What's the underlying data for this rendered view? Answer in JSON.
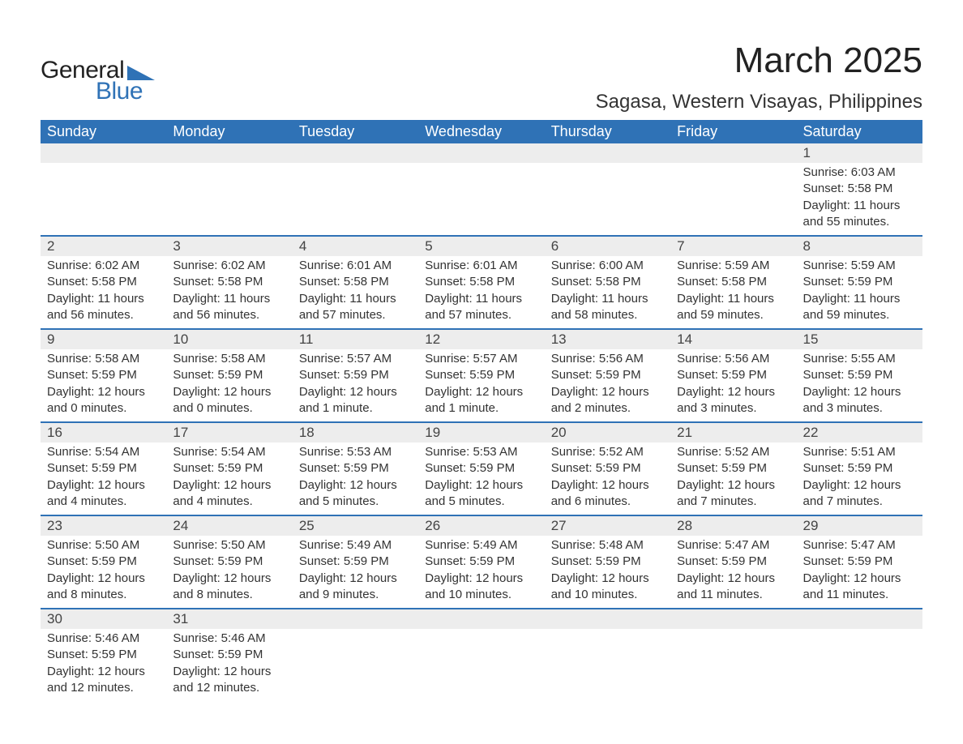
{
  "logo": {
    "general": "General",
    "blue": "Blue",
    "tri_color": "#2f72b6"
  },
  "header": {
    "month_title": "March 2025",
    "location": "Sagasa, Western Visayas, Philippines"
  },
  "calendar": {
    "header_bg": "#2f72b6",
    "header_fg": "#ffffff",
    "daynum_bg": "#ededed",
    "divider_color": "#2f72b6",
    "text_color": "#333333",
    "fontsize_header": 18,
    "fontsize_daynum": 17,
    "fontsize_detail": 15,
    "days_of_week": [
      "Sunday",
      "Monday",
      "Tuesday",
      "Wednesday",
      "Thursday",
      "Friday",
      "Saturday"
    ],
    "weeks": [
      [
        null,
        null,
        null,
        null,
        null,
        null,
        {
          "n": "1",
          "sunrise": "Sunrise: 6:03 AM",
          "sunset": "Sunset: 5:58 PM",
          "daylight": "Daylight: 11 hours and 55 minutes."
        }
      ],
      [
        {
          "n": "2",
          "sunrise": "Sunrise: 6:02 AM",
          "sunset": "Sunset: 5:58 PM",
          "daylight": "Daylight: 11 hours and 56 minutes."
        },
        {
          "n": "3",
          "sunrise": "Sunrise: 6:02 AM",
          "sunset": "Sunset: 5:58 PM",
          "daylight": "Daylight: 11 hours and 56 minutes."
        },
        {
          "n": "4",
          "sunrise": "Sunrise: 6:01 AM",
          "sunset": "Sunset: 5:58 PM",
          "daylight": "Daylight: 11 hours and 57 minutes."
        },
        {
          "n": "5",
          "sunrise": "Sunrise: 6:01 AM",
          "sunset": "Sunset: 5:58 PM",
          "daylight": "Daylight: 11 hours and 57 minutes."
        },
        {
          "n": "6",
          "sunrise": "Sunrise: 6:00 AM",
          "sunset": "Sunset: 5:58 PM",
          "daylight": "Daylight: 11 hours and 58 minutes."
        },
        {
          "n": "7",
          "sunrise": "Sunrise: 5:59 AM",
          "sunset": "Sunset: 5:58 PM",
          "daylight": "Daylight: 11 hours and 59 minutes."
        },
        {
          "n": "8",
          "sunrise": "Sunrise: 5:59 AM",
          "sunset": "Sunset: 5:59 PM",
          "daylight": "Daylight: 11 hours and 59 minutes."
        }
      ],
      [
        {
          "n": "9",
          "sunrise": "Sunrise: 5:58 AM",
          "sunset": "Sunset: 5:59 PM",
          "daylight": "Daylight: 12 hours and 0 minutes."
        },
        {
          "n": "10",
          "sunrise": "Sunrise: 5:58 AM",
          "sunset": "Sunset: 5:59 PM",
          "daylight": "Daylight: 12 hours and 0 minutes."
        },
        {
          "n": "11",
          "sunrise": "Sunrise: 5:57 AM",
          "sunset": "Sunset: 5:59 PM",
          "daylight": "Daylight: 12 hours and 1 minute."
        },
        {
          "n": "12",
          "sunrise": "Sunrise: 5:57 AM",
          "sunset": "Sunset: 5:59 PM",
          "daylight": "Daylight: 12 hours and 1 minute."
        },
        {
          "n": "13",
          "sunrise": "Sunrise: 5:56 AM",
          "sunset": "Sunset: 5:59 PM",
          "daylight": "Daylight: 12 hours and 2 minutes."
        },
        {
          "n": "14",
          "sunrise": "Sunrise: 5:56 AM",
          "sunset": "Sunset: 5:59 PM",
          "daylight": "Daylight: 12 hours and 3 minutes."
        },
        {
          "n": "15",
          "sunrise": "Sunrise: 5:55 AM",
          "sunset": "Sunset: 5:59 PM",
          "daylight": "Daylight: 12 hours and 3 minutes."
        }
      ],
      [
        {
          "n": "16",
          "sunrise": "Sunrise: 5:54 AM",
          "sunset": "Sunset: 5:59 PM",
          "daylight": "Daylight: 12 hours and 4 minutes."
        },
        {
          "n": "17",
          "sunrise": "Sunrise: 5:54 AM",
          "sunset": "Sunset: 5:59 PM",
          "daylight": "Daylight: 12 hours and 4 minutes."
        },
        {
          "n": "18",
          "sunrise": "Sunrise: 5:53 AM",
          "sunset": "Sunset: 5:59 PM",
          "daylight": "Daylight: 12 hours and 5 minutes."
        },
        {
          "n": "19",
          "sunrise": "Sunrise: 5:53 AM",
          "sunset": "Sunset: 5:59 PM",
          "daylight": "Daylight: 12 hours and 5 minutes."
        },
        {
          "n": "20",
          "sunrise": "Sunrise: 5:52 AM",
          "sunset": "Sunset: 5:59 PM",
          "daylight": "Daylight: 12 hours and 6 minutes."
        },
        {
          "n": "21",
          "sunrise": "Sunrise: 5:52 AM",
          "sunset": "Sunset: 5:59 PM",
          "daylight": "Daylight: 12 hours and 7 minutes."
        },
        {
          "n": "22",
          "sunrise": "Sunrise: 5:51 AM",
          "sunset": "Sunset: 5:59 PM",
          "daylight": "Daylight: 12 hours and 7 minutes."
        }
      ],
      [
        {
          "n": "23",
          "sunrise": "Sunrise: 5:50 AM",
          "sunset": "Sunset: 5:59 PM",
          "daylight": "Daylight: 12 hours and 8 minutes."
        },
        {
          "n": "24",
          "sunrise": "Sunrise: 5:50 AM",
          "sunset": "Sunset: 5:59 PM",
          "daylight": "Daylight: 12 hours and 8 minutes."
        },
        {
          "n": "25",
          "sunrise": "Sunrise: 5:49 AM",
          "sunset": "Sunset: 5:59 PM",
          "daylight": "Daylight: 12 hours and 9 minutes."
        },
        {
          "n": "26",
          "sunrise": "Sunrise: 5:49 AM",
          "sunset": "Sunset: 5:59 PM",
          "daylight": "Daylight: 12 hours and 10 minutes."
        },
        {
          "n": "27",
          "sunrise": "Sunrise: 5:48 AM",
          "sunset": "Sunset: 5:59 PM",
          "daylight": "Daylight: 12 hours and 10 minutes."
        },
        {
          "n": "28",
          "sunrise": "Sunrise: 5:47 AM",
          "sunset": "Sunset: 5:59 PM",
          "daylight": "Daylight: 12 hours and 11 minutes."
        },
        {
          "n": "29",
          "sunrise": "Sunrise: 5:47 AM",
          "sunset": "Sunset: 5:59 PM",
          "daylight": "Daylight: 12 hours and 11 minutes."
        }
      ],
      [
        {
          "n": "30",
          "sunrise": "Sunrise: 5:46 AM",
          "sunset": "Sunset: 5:59 PM",
          "daylight": "Daylight: 12 hours and 12 minutes."
        },
        {
          "n": "31",
          "sunrise": "Sunrise: 5:46 AM",
          "sunset": "Sunset: 5:59 PM",
          "daylight": "Daylight: 12 hours and 12 minutes."
        },
        null,
        null,
        null,
        null,
        null
      ]
    ]
  }
}
